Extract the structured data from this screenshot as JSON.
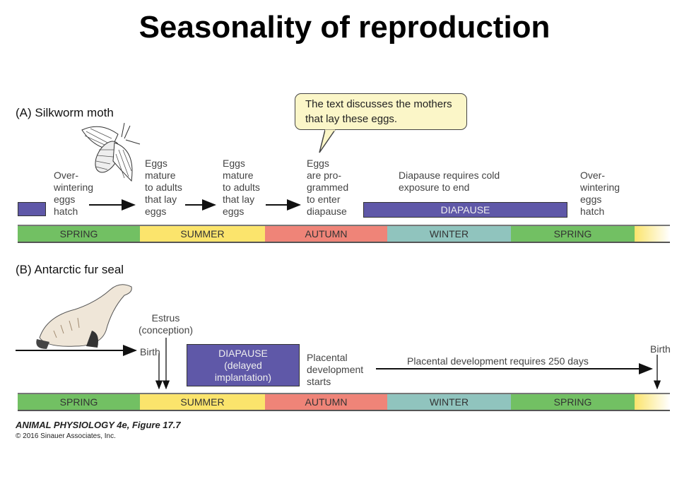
{
  "title": "Seasonality of reproduction",
  "seasons": [
    "SPRING",
    "SUMMER",
    "AUTUMN",
    "WINTER",
    "SPRING"
  ],
  "season_colors": {
    "spring": "#72c063",
    "summer": "#fbe46c",
    "autumn": "#ef8478",
    "winter": "#90c4be",
    "diapause": "#5f58a8",
    "bubble": "#fbf6c8"
  },
  "panel_a": {
    "heading": "(A)  Silkworm moth",
    "callout": "The text discusses the mothers that lay these eggs.",
    "steps": [
      "Over-\nwintering\neggs\nhatch",
      "Eggs\nmature\nto adults\nthat lay\neggs",
      "Eggs\nmature\nto adults\nthat lay\neggs",
      "Eggs\nare pro-\ngrammed\nto enter\ndiapause"
    ],
    "diapause_note": "Diapause requires cold\nexposure to end",
    "diapause_label": "DIAPAUSE",
    "end_label": "Over-\nwintering\neggs\nhatch"
  },
  "panel_b": {
    "heading": "(B)  Antarctic fur seal",
    "estrus": "Estrus\n(conception)",
    "birth": "Birth",
    "diapause_label": "DIAPAUSE\n(delayed\nimplantation)",
    "placental_start": "Placental\ndevelopment\nstarts",
    "placental_note": "Placental development requires 250 days",
    "birth_end": "Birth"
  },
  "credit": {
    "line1": "ANIMAL PHYSIOLOGY 4e,  Figure 17.7",
    "line2": "© 2016 Sinauer Associates, Inc."
  }
}
